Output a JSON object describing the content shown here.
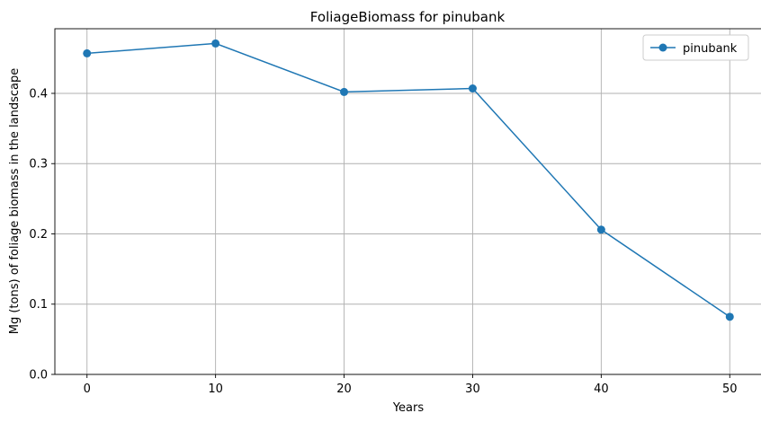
{
  "chart_data": {
    "type": "line",
    "title": "FoliageBiomass for pinubank",
    "xlabel": "Years",
    "ylabel": "Mg (tons) of foliage biomass in the landscape",
    "x": [
      0,
      10,
      20,
      30,
      40,
      50
    ],
    "xticks": [
      0,
      10,
      20,
      30,
      40,
      50
    ],
    "yticks": [
      0.0,
      0.1,
      0.2,
      0.3,
      0.4
    ],
    "xlim": [
      -2.5,
      52.5
    ],
    "ylim": [
      0.0,
      0.492
    ],
    "grid": true,
    "legend_position": "top-right",
    "series": [
      {
        "name": "pinubank",
        "color": "#1f77b4",
        "marker": "circle",
        "values": [
          0.457,
          0.471,
          0.402,
          0.407,
          0.206,
          0.082
        ]
      }
    ]
  }
}
